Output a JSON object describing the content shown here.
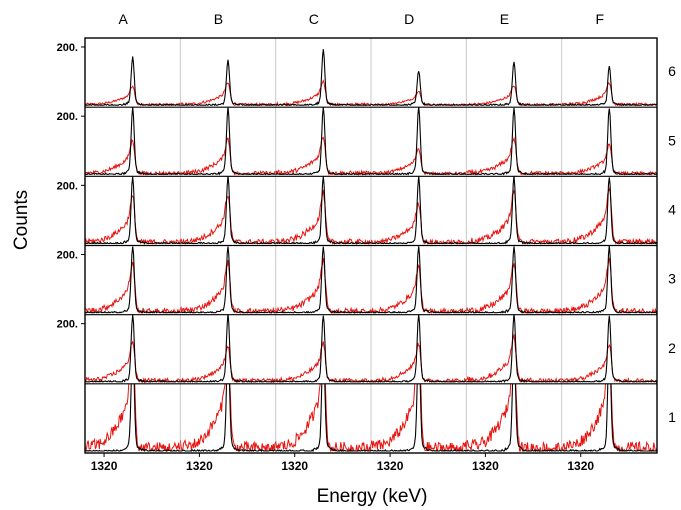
{
  "chart_data": {
    "type": "line",
    "title": "",
    "xlabel": "Energy (keV)",
    "ylabel": "Counts",
    "column_labels": [
      "A",
      "B",
      "C",
      "D",
      "E",
      "F"
    ],
    "row_labels": [
      "6",
      "5",
      "4",
      "3",
      "2",
      "1"
    ],
    "y_tick_label": "200.",
    "x_tick_label": "1320",
    "series": [
      {
        "name": "",
        "color": "#000000"
      },
      {
        "name": "",
        "color": "#e8130f"
      }
    ],
    "peak_heights": {
      "black": [
        [
          0.72,
          0.68,
          0.82,
          0.52,
          0.66,
          0.58
        ],
        [
          1.0,
          1.0,
          1.0,
          1.0,
          1.0,
          1.0
        ],
        [
          1.0,
          1.0,
          1.0,
          1.0,
          1.0,
          1.0
        ],
        [
          1.0,
          1.0,
          1.0,
          1.0,
          1.0,
          1.0
        ],
        [
          1.0,
          1.0,
          1.0,
          1.0,
          1.0,
          1.0
        ],
        [
          1.0,
          1.0,
          1.0,
          1.0,
          1.0,
          1.0
        ]
      ],
      "red": [
        [
          0.3,
          0.34,
          0.36,
          0.22,
          0.3,
          0.35
        ],
        [
          0.52,
          0.55,
          0.58,
          0.4,
          0.55,
          0.45
        ],
        [
          0.72,
          0.75,
          0.78,
          0.62,
          0.8,
          0.82
        ],
        [
          0.75,
          0.78,
          0.8,
          0.7,
          0.76,
          0.8
        ],
        [
          0.62,
          0.55,
          0.6,
          0.58,
          0.7,
          0.55
        ],
        [
          1.0,
          1.0,
          1.0,
          1.0,
          1.0,
          1.0
        ]
      ]
    },
    "grid": false
  }
}
